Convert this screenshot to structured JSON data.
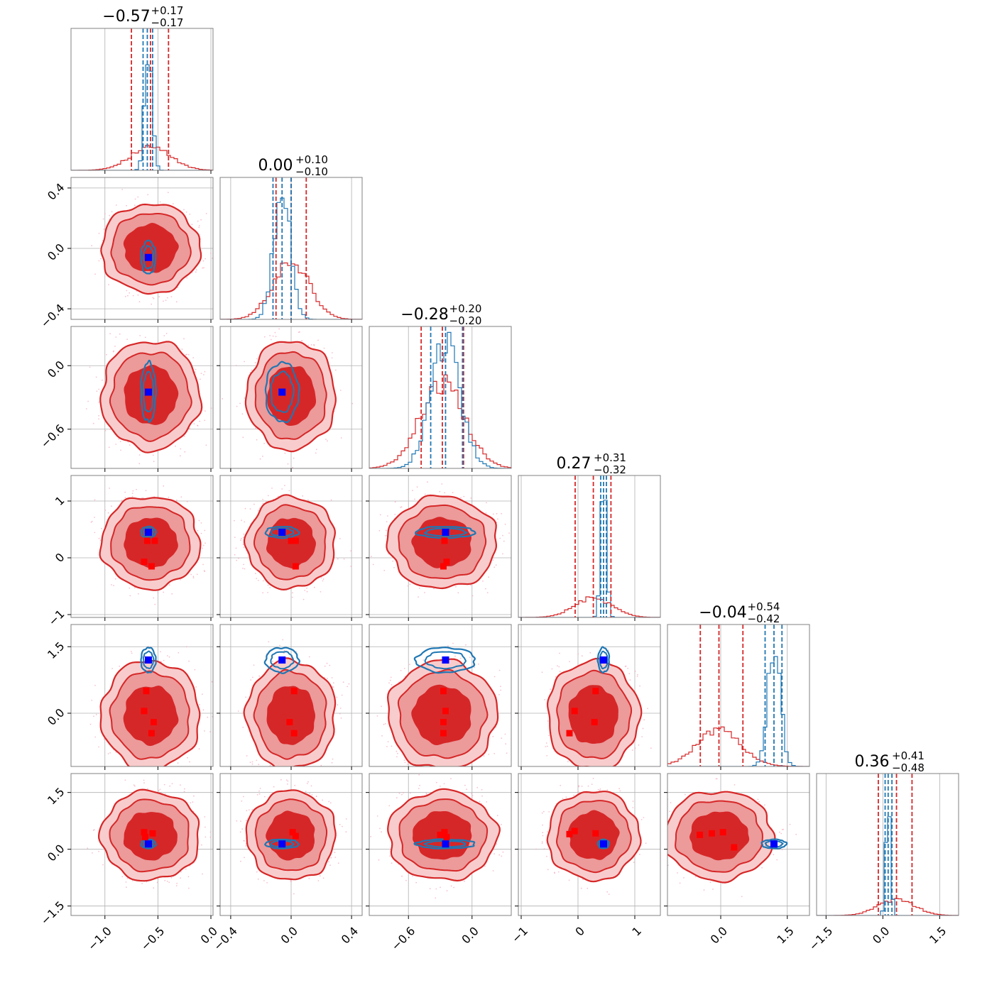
{
  "chart_data": {
    "type": "corner",
    "n_params": 6,
    "colors": {
      "red": "#d62728",
      "red_mid": "#ec9a9a",
      "red_light": "#f8cccc",
      "blue": "#1f77b4",
      "marker_blue": "#0000ff",
      "marker_red": "#ff0000"
    },
    "grid": true,
    "params": [
      {
        "median": -0.57,
        "plus": 0.17,
        "minus": 0.17,
        "title_main": "−0.57",
        "title_plus": "+0.17",
        "title_minus": "−0.17",
        "range": [
          -1.32,
          0.02
        ],
        "ticks": [
          -1.0,
          -0.5,
          0.0
        ],
        "tick_labels": [
          "−1.0",
          "−0.5",
          "0.0"
        ],
        "red_sigma": 0.19,
        "blue_mean": -0.59,
        "blue_sigma": 0.035,
        "blue_lines": [
          -0.64,
          -0.6,
          -0.55
        ],
        "red_lines": [
          -0.75,
          -0.57,
          -0.4
        ]
      },
      {
        "median": 0.0,
        "plus": 0.1,
        "minus": 0.1,
        "title_main": "0.00",
        "title_plus": "+0.10",
        "title_minus": "−0.10",
        "range": [
          -0.47,
          0.47
        ],
        "ticks": [
          -0.4,
          0.0,
          0.4
        ],
        "tick_labels": [
          "−0.4",
          "0.0",
          "0.4"
        ],
        "red_sigma": 0.12,
        "blue_mean": -0.06,
        "blue_sigma": 0.055,
        "blue_lines": [
          -0.12,
          -0.06,
          0.0
        ],
        "red_lines": [
          -0.1,
          0.0,
          0.1
        ]
      },
      {
        "median": -0.28,
        "plus": 0.2,
        "minus": 0.2,
        "title_main": "−0.28",
        "title_plus": "+0.20",
        "title_minus": "−0.20",
        "range": [
          -0.97,
          0.37
        ],
        "ticks": [
          -0.6,
          0.0
        ],
        "tick_labels": [
          "−0.6",
          "0.0"
        ],
        "red_sigma": 0.21,
        "blue_mean": -0.25,
        "blue_sigma": 0.14,
        "blue_lines": [
          -0.39,
          -0.25,
          -0.09
        ],
        "red_lines": [
          -0.48,
          -0.28,
          -0.08
        ]
      },
      {
        "median": 0.27,
        "plus": 0.31,
        "minus": 0.32,
        "title_main": "0.27",
        "title_plus": "+0.31",
        "title_minus": "−0.32",
        "range": [
          -1.05,
          1.45
        ],
        "ticks": [
          -1,
          0,
          1
        ],
        "tick_labels": [
          "−1",
          "0",
          "1"
        ],
        "red_sigma": 0.33,
        "blue_mean": 0.45,
        "blue_sigma": 0.05,
        "blue_lines": [
          0.4,
          0.45,
          0.5
        ],
        "red_lines": [
          -0.05,
          0.27,
          0.58
        ]
      },
      {
        "median": -0.04,
        "plus": 0.54,
        "minus": 0.42,
        "title_main": "−0.04",
        "title_plus": "+0.54",
        "title_minus": "−0.42",
        "range": [
          -1.2,
          2.0
        ],
        "ticks": [
          0.0,
          1.5
        ],
        "tick_labels": [
          "0.0",
          "1.5"
        ],
        "red_sigma": 0.5,
        "blue_mean": 1.2,
        "blue_sigma": 0.14,
        "blue_lines": [
          1.0,
          1.2,
          1.38
        ],
        "red_lines": [
          -0.46,
          -0.04,
          0.5
        ]
      },
      {
        "median": 0.36,
        "plus": 0.41,
        "minus": 0.48,
        "title_main": "0.36",
        "title_plus": "+0.41",
        "title_minus": "−0.48",
        "range": [
          -1.75,
          2.0
        ],
        "ticks": [
          -1.5,
          0.0,
          1.5
        ],
        "tick_labels": [
          "−1.5",
          "0.0",
          "1.5"
        ],
        "red_sigma": 0.48,
        "blue_mean": 0.14,
        "blue_sigma": 0.06,
        "blue_lines": [
          0.06,
          0.14,
          0.24
        ],
        "red_lines": [
          -0.12,
          0.36,
          0.77
        ]
      }
    ],
    "panels_2d": [
      {
        "row": 1,
        "col": 0,
        "blue_marker": [
          -0.59,
          -0.06
        ],
        "red_markers": [],
        "blue_width": [
          0.035,
          0.055
        ],
        "blue_offset": [
          0,
          0
        ]
      },
      {
        "row": 2,
        "col": 0,
        "blue_marker": [
          -0.59,
          -0.25
        ],
        "red_markers": [],
        "blue_width": [
          0.035,
          0.14
        ],
        "blue_offset": [
          0,
          0
        ]
      },
      {
        "row": 2,
        "col": 1,
        "blue_marker": [
          -0.06,
          -0.25
        ],
        "red_markers": [],
        "blue_width": [
          0.055,
          0.14
        ],
        "blue_offset": [
          0,
          0
        ]
      },
      {
        "row": 3,
        "col": 0,
        "blue_marker": [
          -0.59,
          0.45
        ],
        "red_markers": [
          [
            -0.6,
            0.3
          ],
          [
            -0.53,
            0.3
          ],
          [
            -0.63,
            -0.07
          ],
          [
            -0.56,
            -0.15
          ]
        ],
        "blue_width": [
          0.035,
          0.05
        ],
        "blue_offset": [
          0,
          0
        ]
      },
      {
        "row": 3,
        "col": 1,
        "blue_marker": [
          -0.06,
          0.45
        ],
        "red_markers": [
          [
            0.0,
            0.3
          ],
          [
            0.03,
            0.3
          ],
          [
            0.03,
            -0.15
          ]
        ],
        "blue_width": [
          0.055,
          0.05
        ],
        "blue_offset": [
          0,
          0
        ]
      },
      {
        "row": 3,
        "col": 2,
        "blue_marker": [
          -0.25,
          0.45
        ],
        "red_markers": [
          [
            -0.26,
            0.3
          ],
          [
            -0.24,
            -0.07
          ],
          [
            -0.27,
            -0.15
          ]
        ],
        "blue_width": [
          0.14,
          0.05
        ],
        "blue_offset": [
          0,
          0
        ]
      },
      {
        "row": 4,
        "col": 0,
        "blue_marker": [
          -0.59,
          1.2
        ],
        "red_markers": [
          [
            -0.61,
            0.5
          ],
          [
            -0.63,
            0.05
          ],
          [
            -0.54,
            -0.2
          ],
          [
            -0.56,
            -0.45
          ]
        ],
        "blue_width": [
          0.035,
          0.14
        ],
        "blue_offset": [
          0,
          0
        ]
      },
      {
        "row": 4,
        "col": 1,
        "blue_marker": [
          -0.06,
          1.2
        ],
        "red_markers": [
          [
            0.02,
            0.5
          ],
          [
            -0.01,
            -0.2
          ],
          [
            0.02,
            -0.45
          ]
        ],
        "blue_width": [
          0.055,
          0.14
        ],
        "blue_offset": [
          0,
          0
        ]
      },
      {
        "row": 4,
        "col": 2,
        "blue_marker": [
          -0.25,
          1.2
        ],
        "red_markers": [
          [
            -0.27,
            0.5
          ],
          [
            -0.25,
            0.05
          ],
          [
            -0.27,
            -0.2
          ],
          [
            -0.27,
            -0.45
          ]
        ],
        "blue_width": [
          0.14,
          0.14
        ],
        "blue_offset": [
          0,
          0
        ]
      },
      {
        "row": 4,
        "col": 3,
        "blue_marker": [
          0.45,
          1.2
        ],
        "red_markers": [
          [
            0.31,
            0.5
          ],
          [
            -0.06,
            0.05
          ],
          [
            0.29,
            -0.2
          ],
          [
            -0.15,
            -0.45
          ]
        ],
        "blue_width": [
          0.05,
          0.14
        ],
        "blue_offset": [
          0,
          0
        ]
      },
      {
        "row": 5,
        "col": 0,
        "blue_marker": [
          -0.59,
          0.14
        ],
        "red_markers": [
          [
            -0.63,
            0.45
          ],
          [
            -0.55,
            0.42
          ],
          [
            -0.62,
            0.32
          ]
        ],
        "blue_width": [
          0.035,
          0.06
        ],
        "blue_offset": [
          0,
          0
        ]
      },
      {
        "row": 5,
        "col": 1,
        "blue_marker": [
          -0.06,
          0.14
        ],
        "red_markers": [
          [
            0.01,
            0.45
          ],
          [
            0.03,
            0.35
          ]
        ],
        "blue_width": [
          0.055,
          0.06
        ],
        "blue_offset": [
          0,
          0
        ]
      },
      {
        "row": 5,
        "col": 2,
        "blue_marker": [
          -0.25,
          0.14
        ],
        "red_markers": [
          [
            -0.26,
            0.45
          ],
          [
            -0.3,
            0.38
          ],
          [
            -0.24,
            0.32
          ]
        ],
        "blue_width": [
          0.14,
          0.06
        ],
        "blue_offset": [
          0,
          0
        ]
      },
      {
        "row": 5,
        "col": 3,
        "blue_marker": [
          0.45,
          0.14
        ],
        "red_markers": [
          [
            -0.15,
            0.4
          ],
          [
            -0.06,
            0.48
          ],
          [
            0.31,
            0.42
          ]
        ],
        "blue_width": [
          0.05,
          0.06
        ],
        "blue_offset": [
          0,
          0
        ]
      },
      {
        "row": 5,
        "col": 4,
        "blue_marker": [
          1.2,
          0.14
        ],
        "red_markers": [
          [
            -0.47,
            0.38
          ],
          [
            -0.2,
            0.42
          ],
          [
            0.05,
            0.45
          ],
          [
            0.3,
            0.05
          ]
        ],
        "blue_width": [
          0.14,
          0.06
        ],
        "blue_offset": [
          0,
          0
        ]
      }
    ]
  }
}
